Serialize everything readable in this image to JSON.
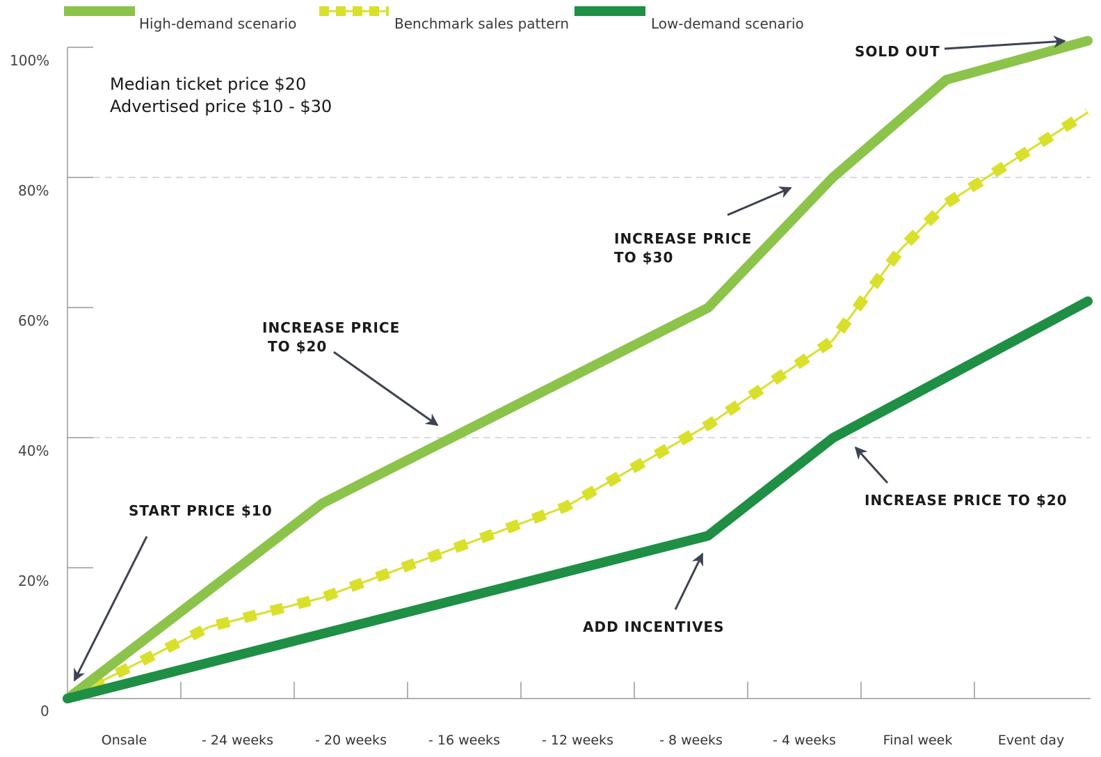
{
  "chart_data": {
    "type": "line",
    "categories": [
      "Onsale",
      "- 24 weeks",
      "- 20 weeks",
      "- 16 weeks",
      "- 12 weeks",
      "- 8 weeks",
      "- 4 weeks",
      "Final week",
      "Event day"
    ],
    "y_ticks": [
      "0",
      "20%",
      "40%",
      "60%",
      "80%",
      "100%"
    ],
    "ylim": [
      0,
      100
    ],
    "legend_position": "top",
    "series": [
      {
        "name": "High-demand scenario",
        "color": "#8cc34a",
        "style": "solid",
        "x": [
          0,
          2.25,
          5.65,
          6.75,
          7.75,
          9
        ],
        "values": [
          0,
          30,
          60,
          80,
          95,
          101
        ]
      },
      {
        "name": "Benchmark sales pattern",
        "color": "#d9e02b",
        "style": "dashed",
        "x": [
          0,
          1.25,
          2.25,
          4.4,
          5.65,
          6.75,
          7.35,
          7.75,
          9
        ],
        "values": [
          0,
          11,
          15.5,
          29.5,
          42,
          55,
          69,
          76,
          90
        ]
      },
      {
        "name": "Low-demand scenario",
        "color": "#1e8f44",
        "style": "solid",
        "x": [
          0,
          5.65,
          6.75,
          9
        ],
        "values": [
          0,
          25,
          40,
          61
        ]
      }
    ],
    "notes": [
      "Median ticket price $20",
      "Advertised price $10 - $30"
    ],
    "annotations": [
      {
        "text": [
          "START PRICE $10"
        ],
        "points_to": {
          "x": 0,
          "y": 0
        }
      },
      {
        "text": [
          "INCREASE PRICE",
          " TO $20"
        ],
        "points_to": {
          "x": 3.25,
          "y": 41
        }
      },
      {
        "text": [
          "INCREASE PRICE",
          "TO $30"
        ],
        "points_to": {
          "x": 6.5,
          "y": 79
        }
      },
      {
        "text": [
          "SOLD OUT"
        ],
        "points_to": {
          "x": 8.5,
          "y": 100
        }
      },
      {
        "text": [
          "ADD INCENTIVES"
        ],
        "points_to": {
          "x": 5.55,
          "y": 23
        }
      },
      {
        "text": [
          "INCREASE PRICE TO $20"
        ],
        "points_to": {
          "x": 6.9,
          "y": 38.5
        }
      }
    ]
  }
}
